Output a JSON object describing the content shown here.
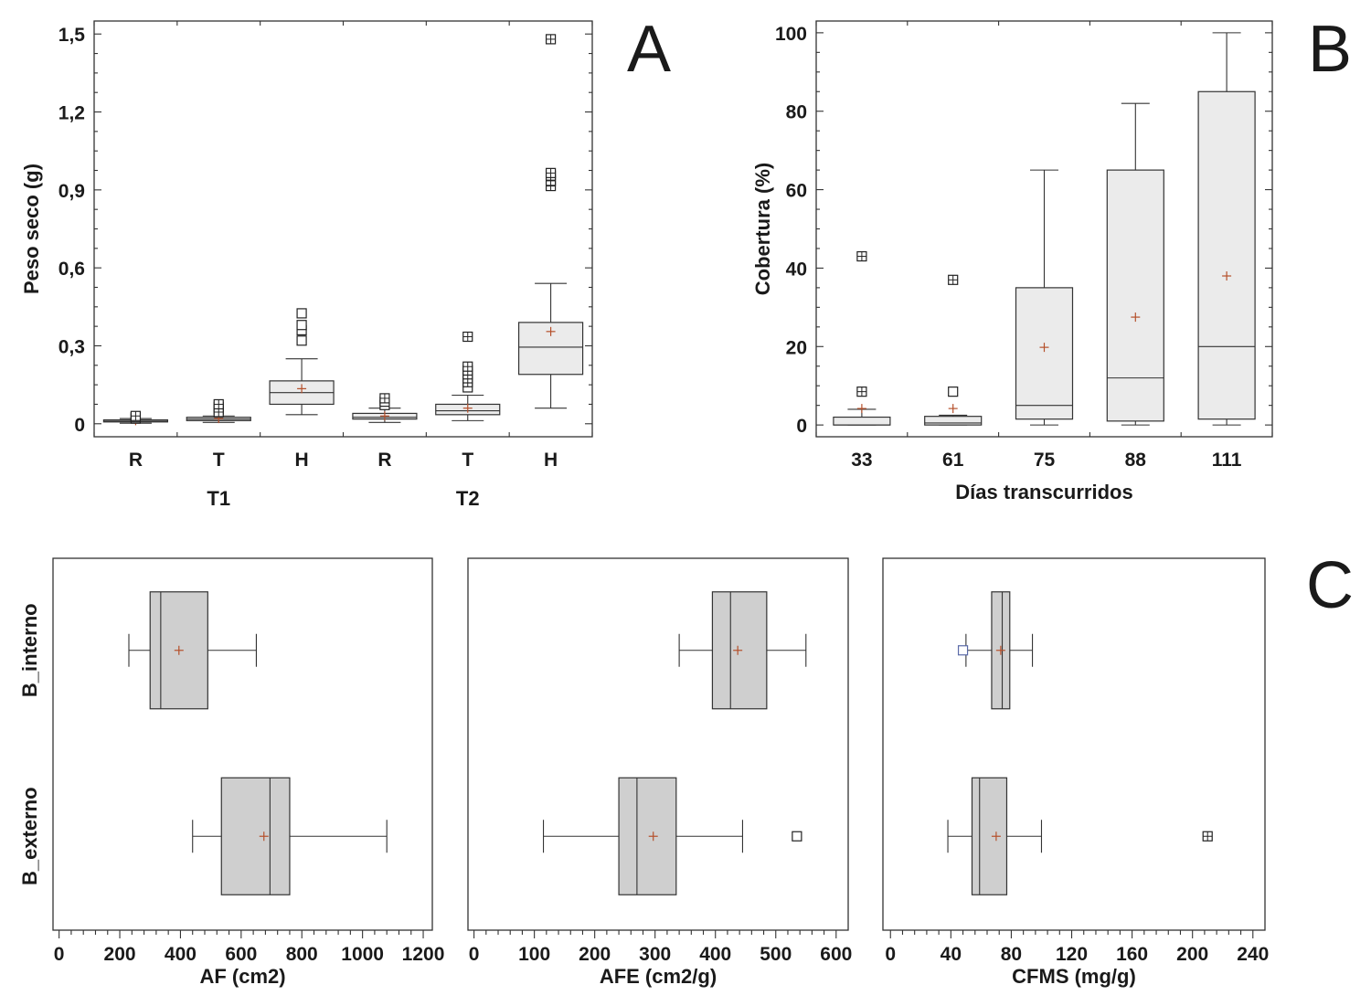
{
  "chart_data": [
    {
      "id": "A",
      "type": "boxplot",
      "panel_label": "A",
      "orientation": "vertical",
      "ylabel": "Peso seco (g)",
      "ylim": [
        -0.05,
        1.55
      ],
      "yticks": [
        0,
        0.3,
        0.6,
        0.9,
        1.2,
        1.5
      ],
      "ytick_labels": [
        "0",
        "0,3",
        "0,6",
        "0,9",
        "1,2",
        "1,5"
      ],
      "categories": [
        "R",
        "T",
        "H",
        "R",
        "T",
        "H"
      ],
      "groups": [
        {
          "label": "T1",
          "members": [
            0,
            1,
            2
          ]
        },
        {
          "label": "T2",
          "members": [
            3,
            4,
            5
          ]
        }
      ],
      "box_fill": "#ebebeb",
      "boxes": [
        {
          "whisker_low": 0.002,
          "q1": 0.007,
          "median": 0.01,
          "q3": 0.015,
          "whisker_high": 0.02,
          "mean": 0.012,
          "outliers": [
            0.02,
            0.025
          ],
          "far_outliers": [
            0.03
          ]
        },
        {
          "whisker_low": 0.005,
          "q1": 0.012,
          "median": 0.018,
          "q3": 0.025,
          "whisker_high": 0.03,
          "mean": 0.02,
          "outliers": [
            0.055,
            0.065
          ],
          "far_outliers": [
            0.045,
            0.075
          ]
        },
        {
          "whisker_low": 0.035,
          "q1": 0.075,
          "median": 0.12,
          "q3": 0.165,
          "whisker_high": 0.25,
          "mean": 0.135,
          "outliers": [
            0.32,
            0.36,
            0.38,
            0.425
          ],
          "far_outliers": []
        },
        {
          "whisker_low": 0.005,
          "q1": 0.018,
          "median": 0.025,
          "q3": 0.04,
          "whisker_high": 0.06,
          "mean": 0.03,
          "outliers": [
            0.072,
            0.085
          ],
          "far_outliers": [
            0.098
          ]
        },
        {
          "whisker_low": 0.012,
          "q1": 0.035,
          "median": 0.05,
          "q3": 0.075,
          "whisker_high": 0.11,
          "mean": 0.06,
          "outliers": [
            0.14
          ],
          "far_outliers": [
            0.16,
            0.175,
            0.19,
            0.205,
            0.22,
            0.335
          ]
        },
        {
          "whisker_low": 0.06,
          "q1": 0.19,
          "median": 0.295,
          "q3": 0.39,
          "whisker_high": 0.54,
          "mean": 0.355,
          "outliers": [],
          "far_outliers": [
            0.915,
            0.935,
            0.955,
            0.965,
            1.48
          ]
        }
      ]
    },
    {
      "id": "B",
      "type": "boxplot",
      "panel_label": "B",
      "orientation": "vertical",
      "ylabel": "Cobertura (%)",
      "xlabel": "Días transcurridos",
      "ylim": [
        -3,
        103
      ],
      "yticks": [
        0,
        20,
        40,
        60,
        80,
        100
      ],
      "ytick_labels": [
        "0",
        "20",
        "40",
        "60",
        "80",
        "100"
      ],
      "categories": [
        "33",
        "61",
        "75",
        "88",
        "111"
      ],
      "box_fill": "#ebebeb",
      "boxes": [
        {
          "whisker_low": 0,
          "q1": 0,
          "median": 0,
          "q3": 2,
          "whisker_high": 4,
          "mean": 4.2,
          "outliers": [],
          "far_outliers": [
            8.5,
            43
          ]
        },
        {
          "whisker_low": 0,
          "q1": 0,
          "median": 0.5,
          "q3": 2.2,
          "whisker_high": 2.5,
          "mean": 4.2,
          "outliers": [
            8.5
          ],
          "far_outliers": [
            37
          ]
        },
        {
          "whisker_low": 0,
          "q1": 1.5,
          "median": 5,
          "q3": 35,
          "whisker_high": 65,
          "mean": 19.8,
          "outliers": [],
          "far_outliers": []
        },
        {
          "whisker_low": 0,
          "q1": 1,
          "median": 12,
          "q3": 65,
          "whisker_high": 82,
          "mean": 27.5,
          "outliers": [],
          "far_outliers": []
        },
        {
          "whisker_low": 0,
          "q1": 1.5,
          "median": 20,
          "q3": 85,
          "whisker_high": 100,
          "mean": 38,
          "outliers": [],
          "far_outliers": []
        }
      ]
    },
    {
      "id": "C1",
      "type": "boxplot",
      "panel_label": "C",
      "orientation": "horizontal",
      "xlabel": "AF (cm2)",
      "xlim": [
        -20,
        1230
      ],
      "xticks": [
        0,
        200,
        400,
        600,
        800,
        1000,
        1200
      ],
      "xtick_labels": [
        "0",
        "200",
        "400",
        "600",
        "800",
        "1000",
        "1200"
      ],
      "categories": [
        "B_interno",
        "B_externo"
      ],
      "box_fill": "#cfcfcf",
      "boxes": [
        {
          "whisker_low": 230,
          "q1": 300,
          "median": 335,
          "q3": 490,
          "whisker_high": 650,
          "mean": 395,
          "outliers": [],
          "far_outliers": []
        },
        {
          "whisker_low": 440,
          "q1": 535,
          "median": 695,
          "q3": 760,
          "whisker_high": 1080,
          "mean": 675,
          "outliers": [],
          "far_outliers": []
        }
      ]
    },
    {
      "id": "C2",
      "type": "boxplot",
      "orientation": "horizontal",
      "xlabel": "AFE (cm2/g)",
      "xlim": [
        -10,
        620
      ],
      "xticks": [
        0,
        100,
        200,
        300,
        400,
        500,
        600
      ],
      "xtick_labels": [
        "0",
        "100",
        "200",
        "300",
        "400",
        "500",
        "600"
      ],
      "categories": [
        "B_interno",
        "B_externo"
      ],
      "box_fill": "#cfcfcf",
      "boxes": [
        {
          "whisker_low": 340,
          "q1": 395,
          "median": 425,
          "q3": 485,
          "whisker_high": 550,
          "mean": 437,
          "outliers": [],
          "far_outliers": []
        },
        {
          "whisker_low": 115,
          "q1": 240,
          "median": 270,
          "q3": 335,
          "whisker_high": 445,
          "mean": 297,
          "outliers": [
            535
          ],
          "far_outliers": []
        }
      ]
    },
    {
      "id": "C3",
      "type": "boxplot",
      "orientation": "horizontal",
      "xlabel": "CFMS (mg/g)",
      "xlim": [
        -5,
        248
      ],
      "xticks": [
        0,
        40,
        80,
        120,
        160,
        200,
        240
      ],
      "xtick_labels": [
        "0",
        "40",
        "80",
        "120",
        "160",
        "200",
        "240"
      ],
      "categories": [
        "B_interno",
        "B_externo"
      ],
      "box_fill": "#cfcfcf",
      "boxes": [
        {
          "whisker_low": 50,
          "q1": 67,
          "median": 74,
          "q3": 79,
          "whisker_high": 94,
          "mean": 73,
          "outliers": [
            48
          ],
          "far_outliers": []
        },
        {
          "whisker_low": 38,
          "q1": 54,
          "median": 59,
          "q3": 77,
          "whisker_high": 100,
          "mean": 70,
          "outliers": [],
          "far_outliers": [
            210
          ]
        }
      ]
    }
  ],
  "colors": {
    "mean_marker": "#b5502b",
    "outlier_blue": "#5a6aa8",
    "frame": "#333333"
  }
}
